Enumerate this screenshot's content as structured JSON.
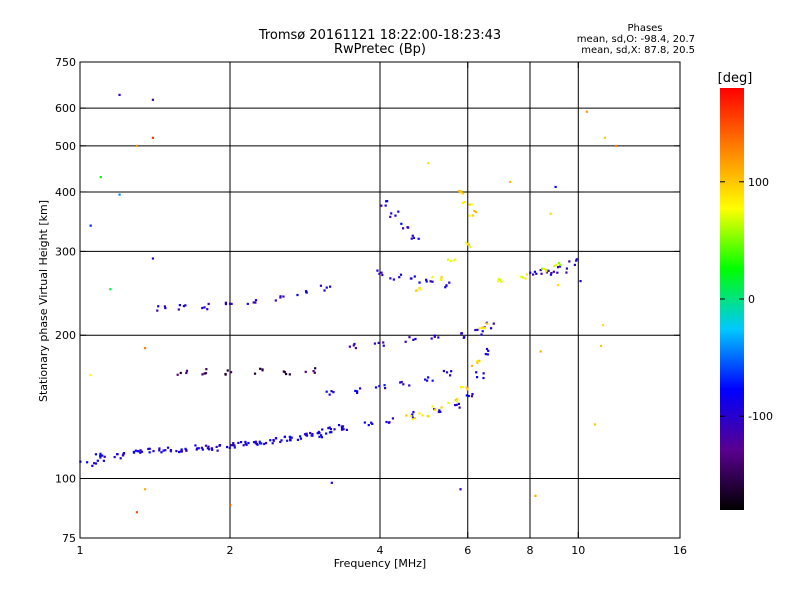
{
  "chart_data": {
    "type": "scatter",
    "title": "Tromsø 20161121 18:22:00-18:23:43",
    "subtitle": "RwPretec (Bp)",
    "xlabel": "Frequency [MHz]",
    "ylabel": "Stationary phase Virtual Height [km]",
    "x_scale": "log",
    "y_scale": "log",
    "xlim": [
      1,
      16
    ],
    "ylim": [
      75,
      750
    ],
    "x_ticks": [
      1,
      2,
      4,
      6,
      8,
      10,
      16
    ],
    "y_ticks": [
      75,
      100,
      200,
      300,
      400,
      500,
      600,
      750
    ],
    "x_grid": [
      2,
      4,
      6,
      8,
      10
    ],
    "y_grid": [
      100,
      200,
      300,
      400,
      500,
      600
    ],
    "grid": true,
    "phases": {
      "title": "Phases",
      "line1": "mean, sd,O: -98.4, 20.7",
      "line2": "mean, sd,X:  87.8, 20.5"
    },
    "colorbar": {
      "label": "[deg]",
      "ticks": [
        {
          "value": 100,
          "label": "100"
        },
        {
          "value": 0,
          "label": "0"
        },
        {
          "value": -100,
          "label": "-100"
        }
      ],
      "range": [
        -180,
        180
      ],
      "colors": [
        "#000000",
        "#5a0090",
        "#0000ff",
        "#00c8ff",
        "#00ff00",
        "#ffff00",
        "#ff8000",
        "#ff0000"
      ]
    },
    "series": [
      {
        "x": [
          1.05,
          1.1,
          1.2,
          1.3,
          1.45,
          1.6,
          1.8,
          2.0,
          2.3,
          2.6,
          3.0,
          3.4,
          3.8,
          4.2,
          4.7,
          5.2,
          5.7,
          6.0,
          6.3,
          6.5
        ],
        "y": [
          107,
          110,
          113,
          114,
          115,
          115,
          116,
          117,
          118,
          121,
          124,
          128,
          131,
          133,
          136,
          139,
          143,
          150,
          165,
          185
        ],
        "phase": -95
      },
      {
        "x": [
          1.45,
          1.6,
          1.8,
          2.0,
          2.2,
          2.5,
          2.8,
          3.1
        ],
        "y": [
          228,
          229,
          230,
          232,
          235,
          240,
          246,
          252
        ],
        "phase": -100
      },
      {
        "x": [
          1.6,
          1.8,
          2.0,
          2.3,
          2.6,
          2.9
        ],
        "y": [
          167,
          168,
          167,
          168,
          168,
          169
        ],
        "phase": -150
      },
      {
        "x": [
          3.2,
          3.6,
          4.0,
          4.5,
          5.0,
          5.5
        ],
        "y": [
          152,
          153,
          155,
          158,
          162,
          166
        ],
        "phase": -90
      },
      {
        "x": [
          3.5,
          4.0,
          4.6,
          5.2,
          5.8,
          6.3,
          6.6
        ],
        "y": [
          190,
          193,
          196,
          198,
          200,
          203,
          210
        ],
        "phase": -100
      },
      {
        "x": [
          4.0,
          4.3,
          4.7,
          5.0,
          5.4
        ],
        "y": [
          270,
          265,
          262,
          258,
          255
        ],
        "phase": -100
      },
      {
        "x": [
          4.6,
          4.9,
          5.2,
          5.6,
          5.9,
          6.2,
          6.5,
          7.0
        ],
        "y": [
          135,
          137,
          140,
          146,
          155,
          175,
          210,
          260
        ],
        "phase": 85
      },
      {
        "x": [
          4.8,
          5.2,
          5.6,
          6.0
        ],
        "y": [
          250,
          265,
          285,
          310
        ],
        "phase": 90
      },
      {
        "x": [
          4.1,
          4.3,
          4.5,
          4.7
        ],
        "y": [
          380,
          360,
          340,
          320
        ],
        "phase": -95
      },
      {
        "x": [
          5.9,
          6.0,
          6.1
        ],
        "y": [
          400,
          380,
          360
        ],
        "phase": 90
      },
      {
        "x": [
          8.2,
          8.6,
          9.0,
          9.3,
          9.7
        ],
        "y": [
          270,
          272,
          270,
          275,
          285
        ],
        "phase": -100
      },
      {
        "x": [
          7.8,
          8.5,
          9.0
        ],
        "y": [
          265,
          275,
          280
        ],
        "phase": 70
      },
      {
        "x": [
          1.0,
          1.1,
          1.2,
          1.3,
          1.4,
          1.5,
          1.6,
          1.7,
          1.8,
          1.9,
          2.0,
          2.1,
          2.2,
          2.3,
          2.4,
          2.5,
          2.6,
          2.7,
          2.8,
          2.9,
          3.0,
          3.1,
          3.2,
          3.3
        ],
        "y": [
          108,
          112,
          112,
          114,
          114,
          115,
          115,
          116,
          116,
          116,
          117,
          118,
          118,
          119,
          119,
          120,
          121,
          122,
          123,
          124,
          124,
          126,
          127,
          128
        ],
        "phase": -90
      }
    ],
    "noise_points": [
      {
        "x": 1.2,
        "y": 640,
        "phase": -105
      },
      {
        "x": 1.4,
        "y": 625,
        "phase": -115
      },
      {
        "x": 1.4,
        "y": 520,
        "phase": 160
      },
      {
        "x": 1.3,
        "y": 500,
        "phase": 120
      },
      {
        "x": 1.1,
        "y": 430,
        "phase": 20
      },
      {
        "x": 1.2,
        "y": 395,
        "phase": -40
      },
      {
        "x": 1.05,
        "y": 340,
        "phase": -70
      },
      {
        "x": 1.4,
        "y": 290,
        "phase": -100
      },
      {
        "x": 1.15,
        "y": 250,
        "phase": 10
      },
      {
        "x": 1.05,
        "y": 165,
        "phase": 80
      },
      {
        "x": 1.35,
        "y": 188,
        "phase": 130
      },
      {
        "x": 1.35,
        "y": 95,
        "phase": 110
      },
      {
        "x": 1.3,
        "y": 85,
        "phase": 150
      },
      {
        "x": 2.0,
        "y": 88,
        "phase": 140
      },
      {
        "x": 3.2,
        "y": 98,
        "phase": -90
      },
      {
        "x": 5.8,
        "y": 95,
        "phase": -110
      },
      {
        "x": 8.2,
        "y": 92,
        "phase": 110
      },
      {
        "x": 11.3,
        "y": 520,
        "phase": 100
      },
      {
        "x": 11.9,
        "y": 500,
        "phase": 130
      },
      {
        "x": 10.4,
        "y": 590,
        "phase": 120
      },
      {
        "x": 10.1,
        "y": 260,
        "phase": -100
      },
      {
        "x": 11.2,
        "y": 210,
        "phase": 90
      },
      {
        "x": 11.1,
        "y": 190,
        "phase": 100
      },
      {
        "x": 8.4,
        "y": 185,
        "phase": 110
      },
      {
        "x": 10.8,
        "y": 130,
        "phase": 100
      },
      {
        "x": 9.1,
        "y": 255,
        "phase": 90
      },
      {
        "x": 8.8,
        "y": 360,
        "phase": 90
      },
      {
        "x": 9.0,
        "y": 410,
        "phase": -80
      },
      {
        "x": 7.3,
        "y": 420,
        "phase": 110
      },
      {
        "x": 5.0,
        "y": 460,
        "phase": 90
      }
    ]
  }
}
